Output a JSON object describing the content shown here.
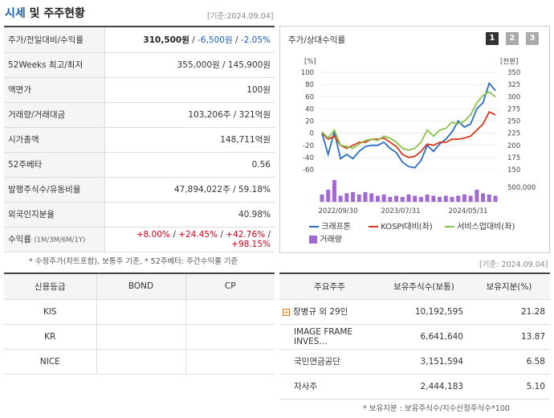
{
  "header": {
    "title_accent": "시세",
    "title_rest": " 및 주주현황",
    "date": "[기준:2024.09.04]"
  },
  "summary": {
    "price_label": "주가/전일대비/수익률",
    "price": "310,500원",
    "change": "-6,500원",
    "change_pct": "-2.05%",
    "w52_label": "52Weeks 최고/최저",
    "w52_value": "355,000원 / 145,900원",
    "par_label": "액면가",
    "par_value": "100원",
    "volume_label": "거래량/거래대금",
    "volume_value": "103,206주 / 321억원",
    "mcap_label": "시가총액",
    "mcap_value": "148,711억원",
    "beta_label": "52주베타",
    "beta_value": "0.56",
    "shares_label": "발행주식수/유동비율",
    "shares_value": "47,894,022주 / 59.18%",
    "foreign_label": "외국인지분율",
    "foreign_value": "40.98%",
    "return_label": "수익률",
    "return_periods": "(1M/3M/6M/1Y)",
    "return_1m": "+8.00%",
    "return_3m": "+24.45%",
    "return_6m": "+42.76%",
    "return_1y": "+98.15%",
    "note": "* 수정주가(차트포함), 보통주 기준, * 52주베타: 주간수익률 기준"
  },
  "chart_panel": {
    "title": "주가/상대수익률",
    "pages": [
      "1",
      "2",
      "3"
    ],
    "left_unit": "[%]",
    "right_unit": "[천원]",
    "legend": {
      "s1": "크래프톤",
      "s2": "KOSPI대비(좌)",
      "s3": "서비스업대비(좌)",
      "s4": "거래량"
    }
  },
  "chart_data": {
    "type": "line",
    "x_ticks": [
      "2022/09/30",
      "2023/07/31",
      "2024/05/31"
    ],
    "y_left_ticks": [
      "100",
      "80",
      "60",
      "40",
      "20",
      "0",
      "-20",
      "-40",
      "-60"
    ],
    "y_right_ticks": [
      "350",
      "325",
      "300",
      "275",
      "250",
      "225",
      "200",
      "175",
      "150"
    ],
    "volume_tick": "500,000",
    "ylim_left": [
      -60,
      100
    ],
    "ylim_right": [
      150,
      350
    ],
    "colors": {
      "s1": "#2a6cc4",
      "s2": "#d9381e",
      "s3": "#8bc34a",
      "vol": "#a06ad2"
    },
    "series": [
      {
        "name": "크래프톤",
        "values": [
          0,
          -35,
          2,
          -42,
          -35,
          -42,
          -30,
          -22,
          -20,
          -20,
          -15,
          -25,
          -32,
          -48,
          -55,
          -57,
          -45,
          -20,
          -30,
          -18,
          -10,
          2,
          20,
          10,
          15,
          40,
          50,
          82,
          70
        ]
      },
      {
        "name": "KOSPI대비(좌)",
        "values": [
          0,
          -10,
          -5,
          -20,
          -25,
          -20,
          -15,
          -15,
          -10,
          -10,
          -8,
          -15,
          -22,
          -35,
          -40,
          -38,
          -30,
          -18,
          -20,
          -15,
          -15,
          -10,
          -10,
          -8,
          -5,
          5,
          15,
          35,
          30
        ]
      },
      {
        "name": "서비스업대비(좌)",
        "values": [
          2,
          -8,
          5,
          -20,
          -22,
          -25,
          -18,
          -12,
          -10,
          -12,
          -5,
          -8,
          -15,
          -25,
          -28,
          -25,
          -15,
          5,
          -5,
          5,
          8,
          18,
          15,
          20,
          30,
          50,
          62,
          68,
          60
        ]
      }
    ],
    "volume": [
      0.6,
      1.0,
      1.8,
      0.5,
      0.7,
      0.8,
      0.6,
      0.8,
      0.7,
      0.5,
      0.6,
      0.4,
      0.5,
      0.4,
      0.6,
      0.5,
      0.4,
      0.6,
      0.5,
      0.4,
      0.5,
      0.4,
      0.5,
      0.6,
      0.5,
      1.0,
      0.7,
      0.6,
      0.5
    ]
  },
  "credit": {
    "headers": [
      "신용등급",
      "BOND",
      "CP"
    ],
    "rows": [
      "KIS",
      "KR",
      "NICE"
    ]
  },
  "holders": {
    "date": "[기준: 2024.09.04]",
    "headers": [
      "주요주주",
      "보유주식수(보통)",
      "보유지분(%)"
    ],
    "rows": [
      {
        "name": "장병규 외 29인",
        "shares": "10,192,595",
        "pct": "21.28"
      },
      {
        "name": "IMAGE FRAME INVES…",
        "shares": "6,641,640",
        "pct": "13.87"
      },
      {
        "name": "국민연금공단",
        "shares": "3,151,594",
        "pct": "6.58"
      },
      {
        "name": "자사주",
        "shares": "2,444,183",
        "pct": "5.10"
      }
    ],
    "note": "* 보유지분 : 보유주식수/지수산정주식수*100"
  }
}
